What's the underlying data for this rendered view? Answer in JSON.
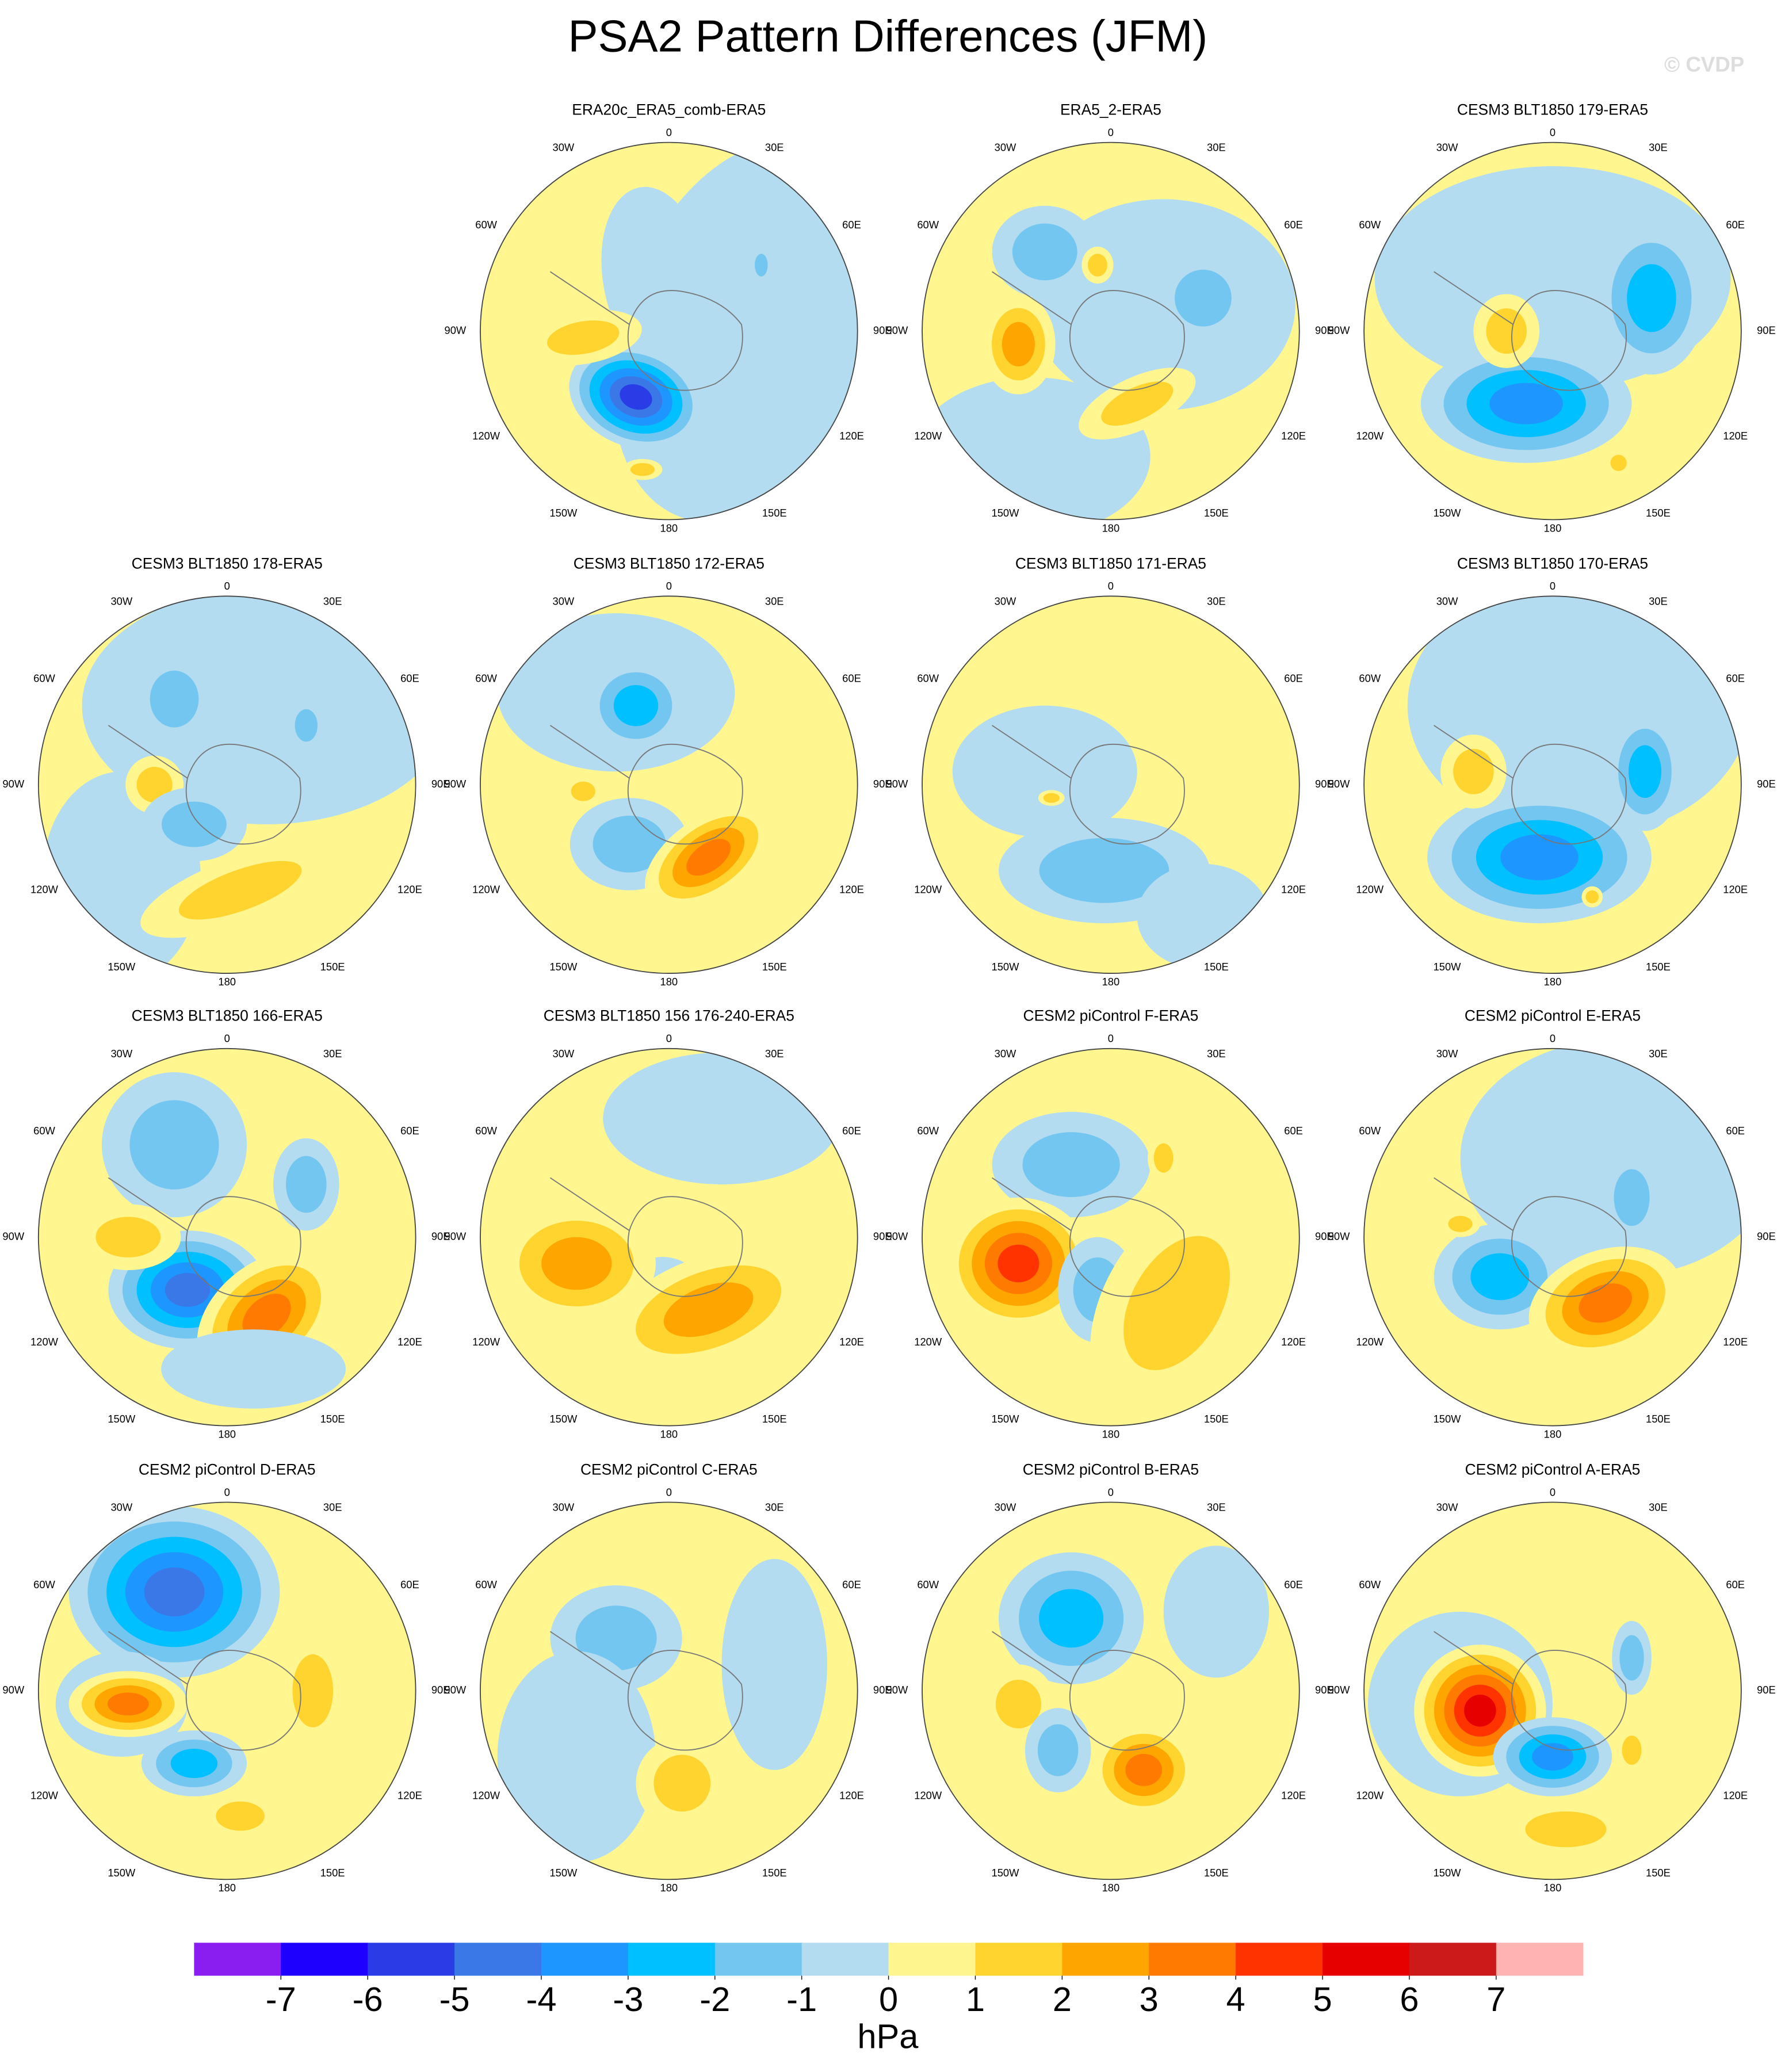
{
  "title": "PSA2 Pattern Differences (JFM)",
  "watermark": "© CVDP",
  "lon_labels": [
    "0",
    "30E",
    "60E",
    "90E",
    "120E",
    "150E",
    "180",
    "150W",
    "120W",
    "90W",
    "60W",
    "30W"
  ],
  "panels": [
    {
      "title": "ERA20c_ERA5_comb-ERA5"
    },
    {
      "title": "ERA5_2-ERA5"
    },
    {
      "title": "CESM3 BLT1850 179-ERA5"
    },
    {
      "title": "CESM3 BLT1850 178-ERA5"
    },
    {
      "title": "CESM3 BLT1850 172-ERA5"
    },
    {
      "title": "CESM3 BLT1850 171-ERA5"
    },
    {
      "title": "CESM3 BLT1850 170-ERA5"
    },
    {
      "title": "CESM3 BLT1850 166-ERA5"
    },
    {
      "title": "CESM3 BLT1850 156 176-240-ERA5"
    },
    {
      "title": "CESM2 piControl F-ERA5"
    },
    {
      "title": "CESM2 piControl E-ERA5"
    },
    {
      "title": "CESM2 piControl D-ERA5"
    },
    {
      "title": "CESM2 piControl C-ERA5"
    },
    {
      "title": "CESM2 piControl B-ERA5"
    },
    {
      "title": "CESM2 piControl A-ERA5"
    }
  ],
  "colorbar": {
    "colors": [
      "#8a1ef0",
      "#1e00ff",
      "#2a3ce6",
      "#3a78e8",
      "#1e96ff",
      "#00c0ff",
      "#73c6f0",
      "#b4dcf0",
      "#fff68f",
      "#ffd42e",
      "#ffa500",
      "#ff7a00",
      "#ff3300",
      "#e60000",
      "#cc1a1a",
      "#ffb3b3"
    ],
    "ticks": [
      -7,
      -6,
      -5,
      -4,
      -3,
      -2,
      -1,
      0,
      1,
      2,
      3,
      4,
      5,
      6,
      7
    ],
    "units": "hPa"
  }
}
